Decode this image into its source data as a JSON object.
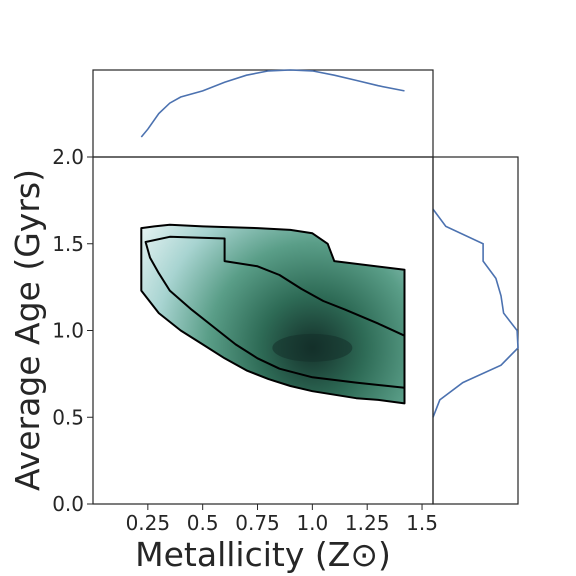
{
  "chart_data": {
    "type": "kde-joint",
    "xlabel": "Metallicity (Z⊙)",
    "ylabel": "Average Age (Gyrs)",
    "xlim": [
      0.0,
      1.55
    ],
    "ylim": [
      0.0,
      2.0
    ],
    "x_ticks": [
      0.25,
      0.5,
      0.75,
      1.0,
      1.25,
      1.5
    ],
    "x_tick_labels": [
      "0.25",
      "0.5",
      "0.75",
      "1.0",
      "1.25",
      "1.5"
    ],
    "y_ticks": [
      0.0,
      0.5,
      1.0,
      1.5,
      2.0
    ],
    "y_tick_labels": [
      "0.0",
      "0.5",
      "1.0",
      "1.5",
      "2.0"
    ],
    "density_peak": {
      "x": 1.0,
      "y": 0.9
    },
    "colormap": [
      "#ffffff",
      "#e6f3f3",
      "#a8d4d1",
      "#5a9e88",
      "#2e6b56",
      "#14302a"
    ],
    "outer_contour": [
      [
        0.22,
        1.23
      ],
      [
        0.3,
        1.1
      ],
      [
        0.4,
        1.0
      ],
      [
        0.5,
        0.92
      ],
      [
        0.6,
        0.84
      ],
      [
        0.7,
        0.77
      ],
      [
        0.8,
        0.72
      ],
      [
        0.9,
        0.68
      ],
      [
        1.0,
        0.65
      ],
      [
        1.1,
        0.63
      ],
      [
        1.2,
        0.61
      ],
      [
        1.3,
        0.6
      ],
      [
        1.42,
        0.58
      ],
      [
        1.42,
        1.35
      ],
      [
        1.1,
        1.4
      ],
      [
        1.07,
        1.5
      ],
      [
        1.0,
        1.56
      ],
      [
        0.9,
        1.58
      ],
      [
        0.75,
        1.59
      ],
      [
        0.5,
        1.6
      ],
      [
        0.35,
        1.61
      ],
      [
        0.28,
        1.6
      ],
      [
        0.22,
        1.59
      ]
    ],
    "inner_contour": [
      [
        0.24,
        1.51
      ],
      [
        0.26,
        1.42
      ],
      [
        0.3,
        1.33
      ],
      [
        0.35,
        1.23
      ],
      [
        0.45,
        1.12
      ],
      [
        0.55,
        1.02
      ],
      [
        0.65,
        0.92
      ],
      [
        0.75,
        0.84
      ],
      [
        0.85,
        0.78
      ],
      [
        1.0,
        0.73
      ],
      [
        1.2,
        0.7
      ],
      [
        1.42,
        0.67
      ],
      [
        1.42,
        0.97
      ],
      [
        1.3,
        1.04
      ],
      [
        1.15,
        1.12
      ],
      [
        1.05,
        1.17
      ],
      [
        0.95,
        1.24
      ],
      [
        0.85,
        1.32
      ],
      [
        0.75,
        1.37
      ],
      [
        0.6,
        1.4
      ],
      [
        0.6,
        1.53
      ],
      [
        0.35,
        1.54
      ],
      [
        0.24,
        1.51
      ]
    ],
    "x_marginal": {
      "x": [
        0.22,
        0.25,
        0.3,
        0.35,
        0.4,
        0.5,
        0.6,
        0.7,
        0.8,
        0.9,
        1.0,
        1.1,
        1.2,
        1.3,
        1.42
      ],
      "density": [
        0.23,
        0.32,
        0.5,
        0.62,
        0.69,
        0.76,
        0.86,
        0.94,
        0.99,
        1.0,
        0.99,
        0.94,
        0.88,
        0.82,
        0.76
      ]
    },
    "y_marginal": {
      "y": [
        0.5,
        0.6,
        0.7,
        0.8,
        0.9,
        1.0,
        1.1,
        1.2,
        1.3,
        1.4,
        1.5,
        1.6,
        1.7
      ],
      "density": [
        0.0,
        0.08,
        0.35,
        0.8,
        1.0,
        0.99,
        0.83,
        0.8,
        0.74,
        0.59,
        0.59,
        0.15,
        0.0
      ]
    }
  }
}
